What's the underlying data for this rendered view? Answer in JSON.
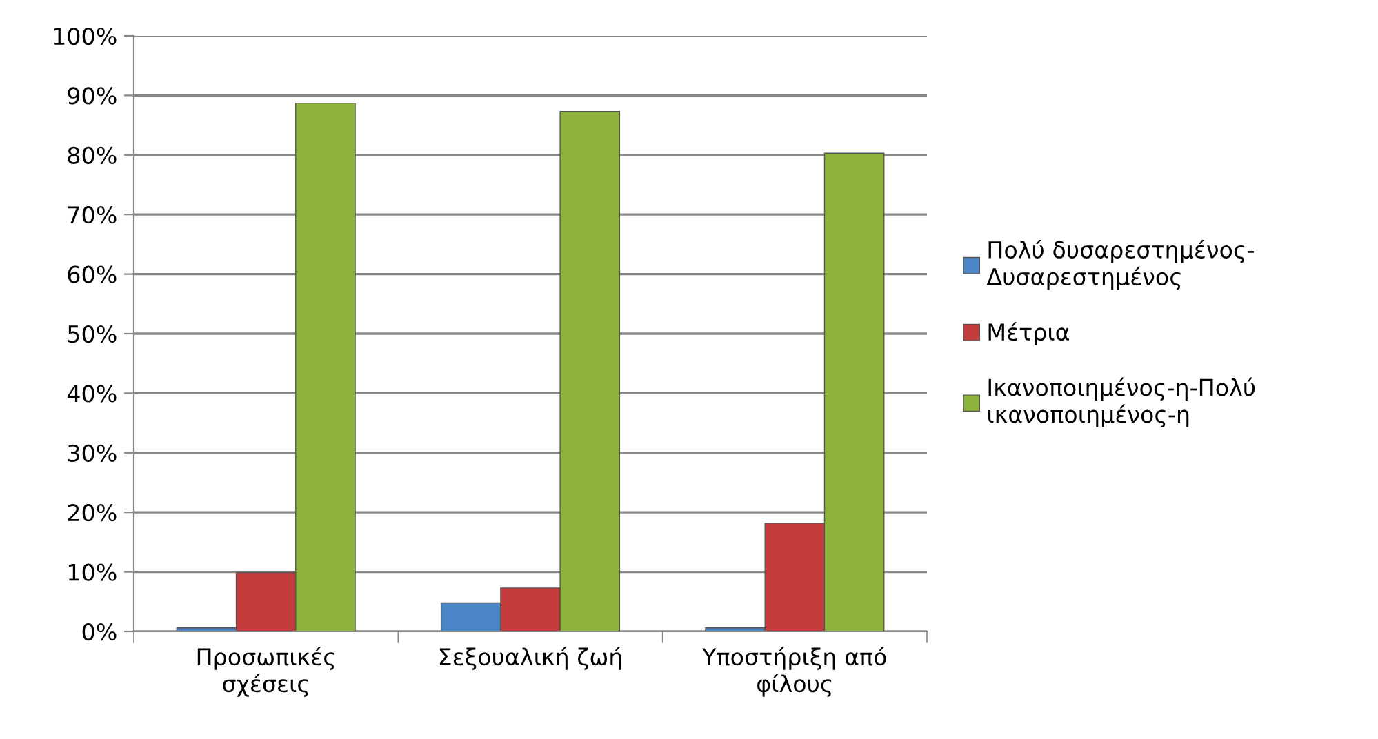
{
  "chart_data": {
    "type": "bar",
    "categories": [
      "Προσωπικές\nσχέσεις",
      "Σεξουαλική ζωή",
      "Υποστήριξη από\nφίλους"
    ],
    "series": [
      {
        "name": "Πολύ δυσαρεστημένος-\nΔυσαρεστημένος",
        "color": "#4a86c8",
        "values": [
          0.6,
          4.8,
          0.6
        ]
      },
      {
        "name": "Μέτρια",
        "color": "#c43c3c",
        "values": [
          9.9,
          7.3,
          18.2
        ]
      },
      {
        "name": "Ικανοποιημένος-η-Πολύ\nικανοποιημένος-η",
        "color": "#8db33a",
        "values": [
          88.7,
          87.3,
          80.3
        ]
      }
    ],
    "ylim": [
      0,
      100
    ],
    "yticks": [
      {
        "value": 0,
        "label": "0%"
      },
      {
        "value": 10,
        "label": "10%"
      },
      {
        "value": 20,
        "label": "20%"
      },
      {
        "value": 30,
        "label": "30%"
      },
      {
        "value": 40,
        "label": "40%"
      },
      {
        "value": 50,
        "label": "50%"
      },
      {
        "value": 60,
        "label": "60%"
      },
      {
        "value": 70,
        "label": "70%"
      },
      {
        "value": 80,
        "label": "80%"
      },
      {
        "value": 90,
        "label": "90%"
      },
      {
        "value": 100,
        "label": "100%"
      }
    ],
    "grid": "y",
    "legend": "right"
  }
}
